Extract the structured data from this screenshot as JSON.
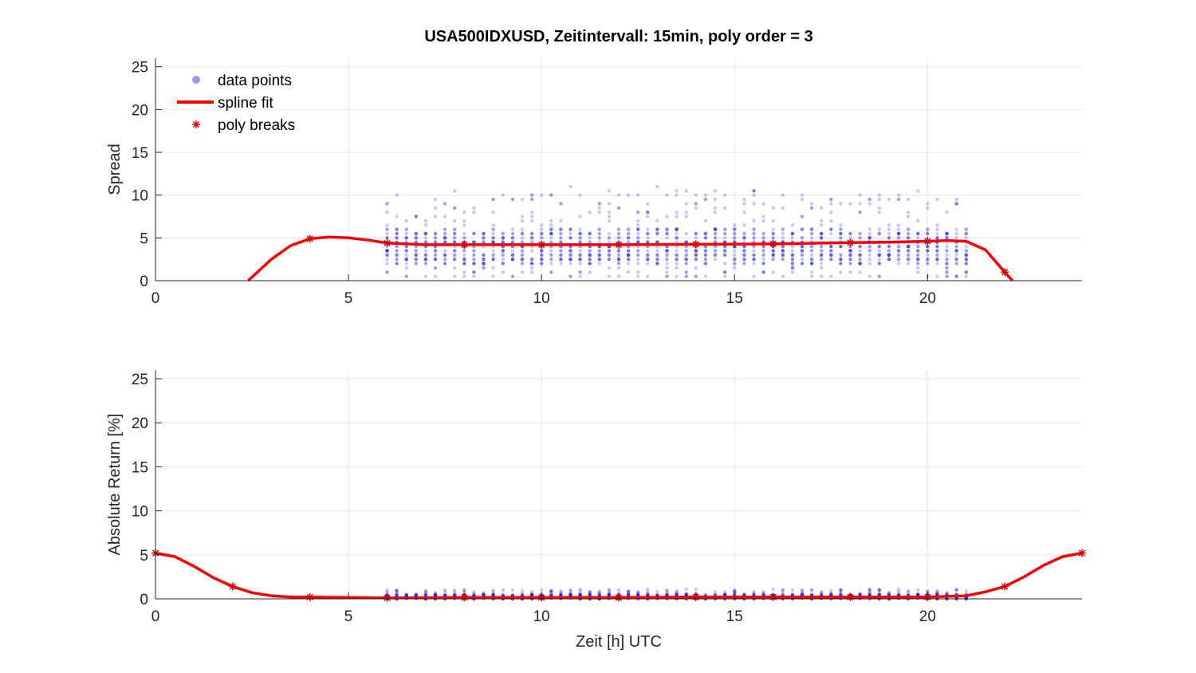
{
  "figure": {
    "title": "USA500IDXUSD, Zeitintervall: 15min, poly order = 3"
  },
  "legend": {
    "placement": "top-left",
    "items": [
      "data points",
      "spline fit",
      "poly breaks"
    ]
  },
  "colors": {
    "data_points": "#1f1fe6",
    "spline_fit": "#ff0000",
    "poly_breaks": "#d40000",
    "grid": "#e6e6e6",
    "axis": "#262626"
  },
  "chart_data": [
    {
      "type": "scatter",
      "xlabel": "",
      "ylabel": "Spread",
      "xlim": [
        0,
        24
      ],
      "ylim": [
        0,
        26
      ],
      "xticks": [
        0,
        5,
        10,
        15,
        20
      ],
      "yticks": [
        0,
        5,
        10,
        15,
        20,
        25
      ],
      "grid": true,
      "scatter_summary": {
        "x_range": [
          6,
          21
        ],
        "x_step": 0.25,
        "dense_band": [
          2,
          6
        ],
        "min": 0.5,
        "max": 12
      },
      "series": [
        {
          "name": "spline fit",
          "x": [
            2.4,
            3,
            3.5,
            4,
            4.5,
            5,
            5.5,
            6,
            7,
            8,
            10,
            12,
            14,
            16,
            18,
            19,
            20,
            20.5,
            21,
            21.5,
            22,
            22.2
          ],
          "y": [
            0,
            2.5,
            4.1,
            4.9,
            5.1,
            5.0,
            4.75,
            4.4,
            4.2,
            4.2,
            4.2,
            4.2,
            4.25,
            4.3,
            4.45,
            4.5,
            4.6,
            4.7,
            4.6,
            3.6,
            1.0,
            0
          ]
        },
        {
          "name": "poly breaks",
          "x": [
            4,
            6,
            8,
            10,
            12,
            14,
            16,
            18,
            20,
            22
          ],
          "y": [
            4.9,
            4.4,
            4.2,
            4.2,
            4.2,
            4.25,
            4.3,
            4.45,
            4.6,
            1.0
          ]
        }
      ]
    },
    {
      "type": "scatter",
      "xlabel": "Zeit [h] UTC",
      "ylabel": "Absolute Return [%]",
      "xlim": [
        0,
        24
      ],
      "ylim": [
        0,
        26
      ],
      "xticks": [
        0,
        5,
        10,
        15,
        20
      ],
      "yticks": [
        0,
        5,
        10,
        15,
        20,
        25
      ],
      "grid": true,
      "scatter_summary": {
        "x_range": [
          6,
          21
        ],
        "x_step": 0.25,
        "dense_band": [
          0,
          0.5
        ],
        "min": 0,
        "max": 1.8
      },
      "series": [
        {
          "name": "spline fit",
          "x": [
            0,
            0.5,
            1,
            1.5,
            2,
            2.5,
            3,
            3.5,
            4,
            5,
            6,
            8,
            10,
            12,
            14,
            16,
            18,
            20,
            21,
            21.5,
            22,
            22.5,
            23,
            23.5,
            24
          ],
          "y": [
            5.2,
            4.8,
            3.7,
            2.4,
            1.4,
            0.7,
            0.35,
            0.2,
            0.2,
            0.15,
            0.1,
            0.15,
            0.15,
            0.15,
            0.2,
            0.2,
            0.2,
            0.2,
            0.35,
            0.8,
            1.4,
            2.5,
            3.8,
            4.8,
            5.2
          ]
        },
        {
          "name": "poly breaks",
          "x": [
            0,
            2,
            4,
            6,
            8,
            10,
            12,
            14,
            16,
            18,
            20,
            22,
            24
          ],
          "y": [
            5.2,
            1.4,
            0.2,
            0.1,
            0.15,
            0.15,
            0.15,
            0.2,
            0.2,
            0.2,
            0.2,
            1.4,
            5.2
          ]
        }
      ]
    }
  ]
}
